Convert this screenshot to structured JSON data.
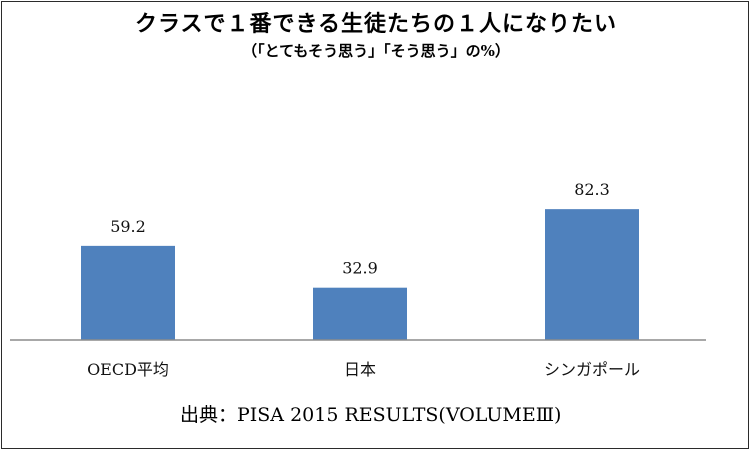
{
  "chart_data": {
    "type": "bar",
    "title": "クラスで１番できる生徒たちの１人になりたい",
    "subtitle": "（「とてもそう思う」「そう思う」の%）",
    "categories": [
      "OECD平均",
      "日本",
      "シンガポール"
    ],
    "values": [
      59.2,
      32.9,
      82.3
    ],
    "value_labels": [
      "59.2",
      "32.9",
      "82.3"
    ],
    "ylim": [
      0,
      100
    ],
    "grid": false,
    "legend": "none",
    "bar_color": "#4f81bd",
    "xlabel": "",
    "ylabel": ""
  },
  "source": "出典：PISA 2015 RESULTS(VOLUMEⅢ)"
}
